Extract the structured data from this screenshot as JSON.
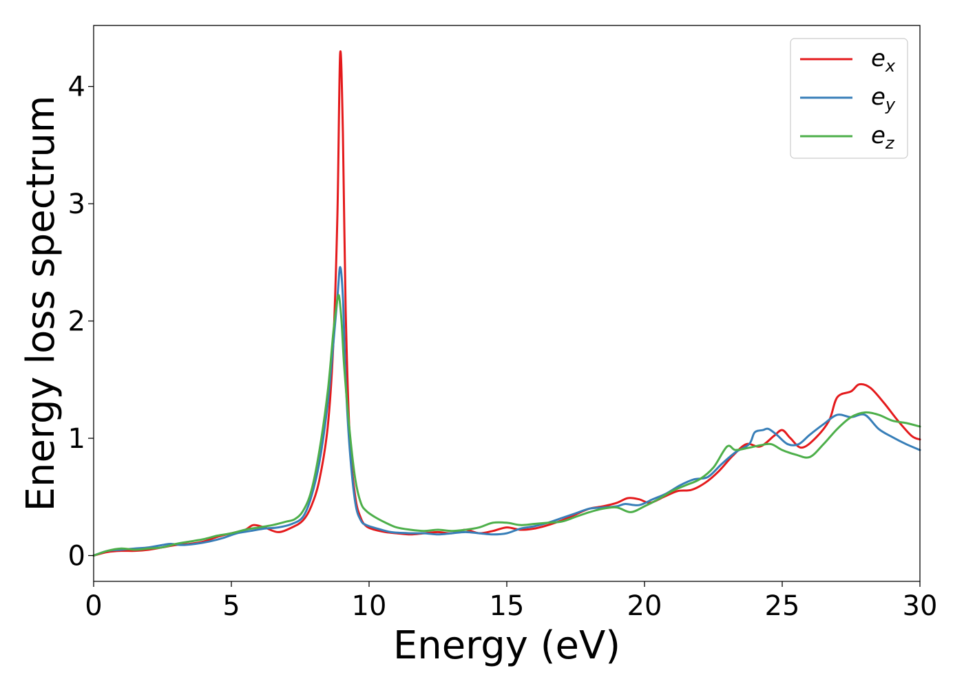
{
  "chart_data": {
    "type": "line",
    "xlabel": "Energy (eV)",
    "ylabel": "Energy loss spectrum",
    "xlim": [
      0,
      30
    ],
    "ylim": [
      -0.22,
      4.52
    ],
    "xticks": [
      0,
      5,
      10,
      15,
      20,
      25,
      30
    ],
    "xtick_labels": [
      "0",
      "5",
      "10",
      "15",
      "20",
      "25",
      "30"
    ],
    "yticks": [
      0,
      1,
      2,
      3,
      4
    ],
    "ytick_labels": [
      "0",
      "1",
      "2",
      "3",
      "4"
    ],
    "grid": false,
    "legend_position": "top-right",
    "series": [
      {
        "name": "e_x",
        "label_base": "e",
        "label_sub": "x",
        "color": "#e41a1c",
        "x": [
          0,
          0.5,
          1,
          1.5,
          2,
          2.5,
          3,
          3.5,
          4,
          4.5,
          5,
          5.5,
          5.8,
          6.2,
          6.7,
          7.2,
          7.6,
          7.9,
          8.2,
          8.5,
          8.7,
          8.85,
          8.95,
          9.05,
          9.15,
          9.3,
          9.5,
          9.7,
          9.9,
          10.2,
          10.6,
          11,
          11.5,
          12,
          12.5,
          13,
          13.5,
          14,
          14.5,
          15,
          15.5,
          16,
          16.5,
          17,
          17.5,
          18,
          18.5,
          19,
          19.4,
          19.8,
          20.2,
          20.7,
          21.2,
          21.7,
          22.2,
          22.7,
          23.2,
          23.7,
          24.2,
          24.7,
          25,
          25.3,
          25.7,
          26.2,
          26.7,
          27,
          27.5,
          27.8,
          28.2,
          28.7,
          29.2,
          29.7,
          30
        ],
        "y": [
          0,
          0.03,
          0.04,
          0.04,
          0.05,
          0.07,
          0.09,
          0.1,
          0.12,
          0.16,
          0.19,
          0.22,
          0.26,
          0.24,
          0.2,
          0.24,
          0.3,
          0.42,
          0.65,
          1.1,
          1.8,
          2.9,
          4.28,
          3.6,
          2.1,
          1.0,
          0.5,
          0.32,
          0.25,
          0.22,
          0.2,
          0.19,
          0.18,
          0.19,
          0.2,
          0.19,
          0.22,
          0.19,
          0.21,
          0.24,
          0.22,
          0.23,
          0.26,
          0.3,
          0.35,
          0.4,
          0.42,
          0.45,
          0.49,
          0.48,
          0.45,
          0.5,
          0.55,
          0.56,
          0.62,
          0.72,
          0.85,
          0.95,
          0.93,
          1.02,
          1.07,
          1.0,
          0.92,
          1.0,
          1.15,
          1.35,
          1.4,
          1.46,
          1.43,
          1.3,
          1.15,
          1.02,
          0.99
        ]
      },
      {
        "name": "e_y",
        "label_base": "e",
        "label_sub": "y",
        "color": "#377eb8",
        "x": [
          0,
          0.5,
          1,
          1.5,
          2,
          2.5,
          2.8,
          3.2,
          3.7,
          4.2,
          4.7,
          5.2,
          5.7,
          6.2,
          6.7,
          7.2,
          7.6,
          7.9,
          8.2,
          8.5,
          8.7,
          8.85,
          8.95,
          9.05,
          9.15,
          9.3,
          9.5,
          9.7,
          9.9,
          10.3,
          10.8,
          11.5,
          12,
          12.5,
          13,
          13.5,
          14,
          14.5,
          15,
          15.5,
          16,
          16.5,
          17,
          17.5,
          18,
          18.5,
          19,
          19.3,
          19.8,
          20.3,
          20.8,
          21.3,
          21.8,
          22.3,
          22.8,
          23.3,
          23.8,
          24,
          24.3,
          24.5,
          24.8,
          25.2,
          25.6,
          26,
          26.5,
          27,
          27.5,
          28,
          28.5,
          29,
          29.5,
          30
        ],
        "y": [
          0,
          0.04,
          0.05,
          0.06,
          0.07,
          0.09,
          0.1,
          0.09,
          0.1,
          0.12,
          0.15,
          0.19,
          0.21,
          0.23,
          0.24,
          0.27,
          0.33,
          0.5,
          0.8,
          1.3,
          1.8,
          2.2,
          2.46,
          2.2,
          1.5,
          0.9,
          0.45,
          0.3,
          0.26,
          0.23,
          0.2,
          0.19,
          0.19,
          0.18,
          0.19,
          0.2,
          0.19,
          0.18,
          0.19,
          0.23,
          0.25,
          0.28,
          0.32,
          0.36,
          0.4,
          0.41,
          0.42,
          0.44,
          0.43,
          0.48,
          0.53,
          0.6,
          0.65,
          0.67,
          0.78,
          0.88,
          0.95,
          1.05,
          1.07,
          1.08,
          1.03,
          0.95,
          0.95,
          1.03,
          1.12,
          1.2,
          1.18,
          1.2,
          1.08,
          1.01,
          0.95,
          0.9
        ]
      },
      {
        "name": "e_z",
        "label_base": "e",
        "label_sub": "z",
        "color": "#4daf4a",
        "x": [
          0,
          0.5,
          1,
          1.5,
          2,
          2.5,
          3,
          3.5,
          4,
          4.5,
          5,
          5.5,
          6,
          6.5,
          7,
          7.3,
          7.6,
          7.9,
          8.2,
          8.5,
          8.7,
          8.8,
          8.9,
          9.0,
          9.1,
          9.3,
          9.5,
          9.7,
          9.9,
          10.2,
          10.6,
          11,
          11.5,
          12,
          12.5,
          13,
          13.5,
          14,
          14.5,
          15,
          15.5,
          16,
          16.5,
          17,
          17.5,
          18,
          18.5,
          19,
          19.5,
          20,
          20.5,
          21,
          21.5,
          22,
          22.5,
          23,
          23.3,
          23.8,
          24.2,
          24.6,
          25,
          25.5,
          26,
          26.5,
          27,
          27.5,
          28,
          28.5,
          29,
          29.5,
          30
        ],
        "y": [
          0,
          0.04,
          0.06,
          0.05,
          0.06,
          0.07,
          0.1,
          0.12,
          0.14,
          0.17,
          0.19,
          0.22,
          0.24,
          0.26,
          0.29,
          0.31,
          0.38,
          0.55,
          0.9,
          1.4,
          1.9,
          2.1,
          2.22,
          2.0,
          1.6,
          1.05,
          0.65,
          0.45,
          0.38,
          0.33,
          0.28,
          0.24,
          0.22,
          0.21,
          0.22,
          0.21,
          0.22,
          0.24,
          0.28,
          0.28,
          0.26,
          0.27,
          0.28,
          0.29,
          0.33,
          0.37,
          0.4,
          0.41,
          0.37,
          0.42,
          0.48,
          0.55,
          0.6,
          0.65,
          0.75,
          0.93,
          0.9,
          0.92,
          0.94,
          0.95,
          0.9,
          0.86,
          0.84,
          0.95,
          1.08,
          1.18,
          1.22,
          1.2,
          1.15,
          1.13,
          1.1
        ]
      }
    ]
  }
}
